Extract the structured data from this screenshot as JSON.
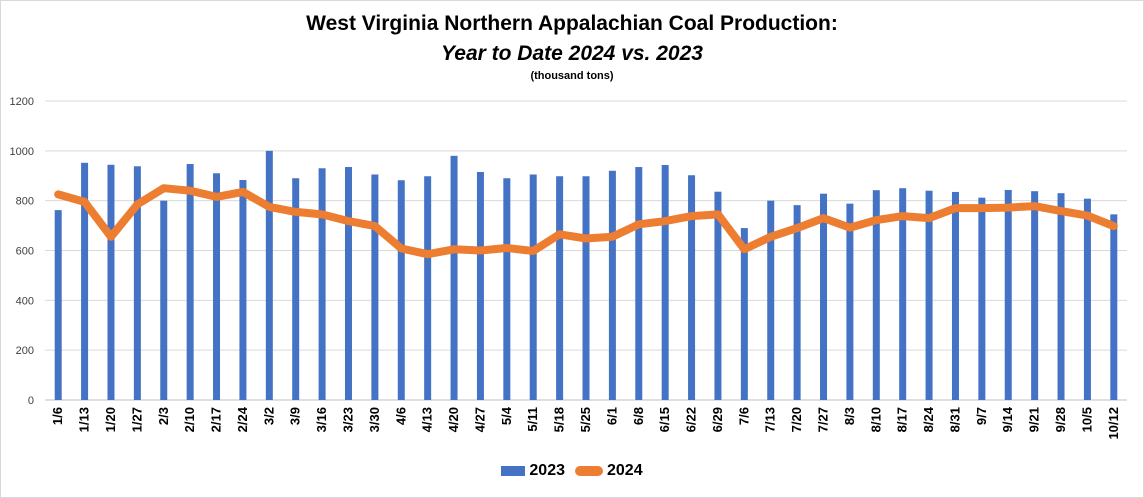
{
  "chart_data": {
    "type": "bar",
    "title": "West Virginia Northern Appalachian Coal Production:",
    "subtitle": "Year to Date 2024 vs. 2023",
    "units_note": "(thousand tons)",
    "ylim": [
      0,
      1200
    ],
    "yticks": [
      0,
      200,
      400,
      600,
      800,
      1000,
      1200
    ],
    "grid": true,
    "legend_position": "bottom",
    "categories": [
      "1/6",
      "1/13",
      "1/20",
      "1/27",
      "2/3",
      "2/10",
      "2/17",
      "2/24",
      "3/2",
      "3/9",
      "3/16",
      "3/23",
      "3/30",
      "4/6",
      "4/13",
      "4/20",
      "4/27",
      "5/4",
      "5/11",
      "5/18",
      "5/25",
      "6/1",
      "6/8",
      "6/15",
      "6/22",
      "6/29",
      "7/6",
      "7/13",
      "7/20",
      "7/27",
      "8/3",
      "8/10",
      "8/17",
      "8/24",
      "8/31",
      "9/7",
      "9/14",
      "9/21",
      "9/28",
      "10/5",
      "10/12"
    ],
    "series": [
      {
        "name": "2023",
        "type": "bar",
        "color": "#4472c4",
        "values": [
          762,
          952,
          944,
          938,
          800,
          947,
          910,
          883,
          1000,
          890,
          930,
          935,
          905,
          882,
          898,
          980,
          915,
          890,
          905,
          898,
          898,
          920,
          935,
          943,
          902,
          836,
          690,
          800,
          782,
          828,
          788,
          842,
          850,
          840,
          835,
          812,
          843,
          838,
          830,
          808,
          745
        ]
      },
      {
        "name": "2024",
        "type": "line",
        "color": "#ed7d31",
        "values": [
          825,
          795,
          655,
          785,
          850,
          840,
          815,
          835,
          775,
          755,
          745,
          718,
          698,
          608,
          585,
          605,
          600,
          610,
          598,
          665,
          648,
          655,
          705,
          718,
          738,
          745,
          605,
          655,
          690,
          730,
          692,
          722,
          738,
          730,
          770,
          770,
          772,
          778,
          758,
          740,
          698
        ]
      }
    ]
  }
}
